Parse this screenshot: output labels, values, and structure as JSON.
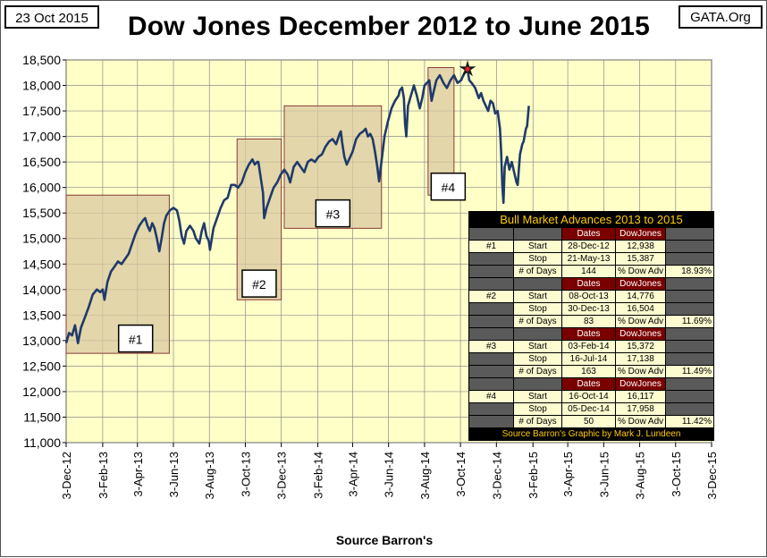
{
  "header": {
    "date": "23 Oct 2015",
    "site": "GATA.Org",
    "title": "Dow Jones December 2012 to June 2015"
  },
  "footer": {
    "source": "Source Barron's"
  },
  "colors": {
    "plot_bg": "#ffffc8",
    "line": "#1f3a6b",
    "box_fill": "#d9c8a0",
    "box_border": "#8b3a3a",
    "peak_marker": "#e0202a"
  },
  "chart_data": {
    "type": "line",
    "title": "Dow Jones December 2012 to June 2015",
    "xlabel": "Source Barron's",
    "ylabel": "",
    "ylim": [
      11000,
      18500
    ],
    "yticks": [
      11000,
      11500,
      12000,
      12500,
      13000,
      13500,
      14000,
      14500,
      15000,
      15500,
      16000,
      16500,
      17000,
      17500,
      18000,
      18500
    ],
    "ytick_labels": [
      "11,000",
      "11,500",
      "12,000",
      "12,500",
      "13,000",
      "13,500",
      "14,000",
      "14,500",
      "15,000",
      "15,500",
      "16,000",
      "16,500",
      "17,000",
      "17,500",
      "18,000",
      "18,500"
    ],
    "xlim_days": [
      0,
      1095
    ],
    "xticks_days": [
      0,
      62,
      121,
      182,
      243,
      304,
      365,
      427,
      486,
      547,
      608,
      669,
      730,
      792,
      851,
      912,
      973,
      1034,
      1095
    ],
    "xtick_labels": [
      "3-Dec-12",
      "3-Feb-13",
      "3-Apr-13",
      "3-Jun-13",
      "3-Aug-13",
      "3-Oct-13",
      "3-Dec-13",
      "3-Feb-14",
      "3-Apr-14",
      "3-Jun-14",
      "3-Aug-14",
      "3-Oct-14",
      "3-Dec-14",
      "3-Feb-15",
      "3-Apr-15",
      "3-Jun-15",
      "3-Aug-15",
      "3-Oct-15",
      "3-Dec-15"
    ],
    "series": [
      {
        "name": "Dow Jones",
        "points": [
          [
            0,
            12950
          ],
          [
            5,
            13150
          ],
          [
            10,
            13100
          ],
          [
            15,
            13300
          ],
          [
            20,
            12950
          ],
          [
            25,
            13250
          ],
          [
            30,
            13400
          ],
          [
            38,
            13650
          ],
          [
            45,
            13900
          ],
          [
            52,
            14000
          ],
          [
            58,
            13950
          ],
          [
            62,
            14000
          ],
          [
            65,
            13800
          ],
          [
            70,
            14150
          ],
          [
            76,
            14350
          ],
          [
            82,
            14450
          ],
          [
            88,
            14550
          ],
          [
            94,
            14500
          ],
          [
            100,
            14600
          ],
          [
            106,
            14700
          ],
          [
            112,
            14900
          ],
          [
            118,
            15100
          ],
          [
            124,
            15250
          ],
          [
            130,
            15350
          ],
          [
            134,
            15400
          ],
          [
            138,
            15250
          ],
          [
            142,
            15150
          ],
          [
            146,
            15300
          ],
          [
            150,
            15200
          ],
          [
            154,
            15000
          ],
          [
            158,
            14750
          ],
          [
            162,
            15000
          ],
          [
            166,
            15300
          ],
          [
            170,
            15450
          ],
          [
            176,
            15550
          ],
          [
            182,
            15600
          ],
          [
            188,
            15550
          ],
          [
            192,
            15350
          ],
          [
            196,
            15050
          ],
          [
            200,
            14900
          ],
          [
            204,
            15150
          ],
          [
            210,
            15250
          ],
          [
            216,
            15150
          ],
          [
            220,
            15000
          ],
          [
            226,
            14900
          ],
          [
            230,
            15150
          ],
          [
            234,
            15300
          ],
          [
            238,
            15050
          ],
          [
            242,
            14950
          ],
          [
            244,
            14780
          ],
          [
            250,
            15200
          ],
          [
            256,
            15400
          ],
          [
            262,
            15600
          ],
          [
            268,
            15750
          ],
          [
            274,
            15800
          ],
          [
            280,
            16050
          ],
          [
            286,
            16050
          ],
          [
            292,
            16000
          ],
          [
            298,
            16100
          ],
          [
            304,
            16300
          ],
          [
            310,
            16450
          ],
          [
            316,
            16550
          ],
          [
            320,
            16450
          ],
          [
            324,
            16500
          ],
          [
            326,
            16500
          ],
          [
            330,
            16200
          ],
          [
            334,
            15900
          ],
          [
            336,
            15400
          ],
          [
            340,
            15600
          ],
          [
            346,
            15800
          ],
          [
            352,
            16000
          ],
          [
            358,
            16100
          ],
          [
            364,
            16250
          ],
          [
            370,
            16350
          ],
          [
            376,
            16250
          ],
          [
            380,
            16100
          ],
          [
            386,
            16400
          ],
          [
            392,
            16500
          ],
          [
            398,
            16400
          ],
          [
            404,
            16300
          ],
          [
            410,
            16500
          ],
          [
            416,
            16550
          ],
          [
            422,
            16500
          ],
          [
            428,
            16600
          ],
          [
            434,
            16650
          ],
          [
            440,
            16800
          ],
          [
            446,
            16900
          ],
          [
            452,
            16950
          ],
          [
            458,
            16850
          ],
          [
            464,
            17050
          ],
          [
            466,
            17100
          ],
          [
            468,
            16900
          ],
          [
            472,
            16600
          ],
          [
            476,
            16450
          ],
          [
            480,
            16550
          ],
          [
            486,
            16700
          ],
          [
            492,
            16950
          ],
          [
            498,
            17050
          ],
          [
            504,
            17100
          ],
          [
            508,
            17150
          ],
          [
            512,
            17000
          ],
          [
            516,
            17050
          ],
          [
            520,
            16950
          ],
          [
            524,
            16700
          ],
          [
            528,
            16400
          ],
          [
            531,
            16120
          ],
          [
            536,
            16600
          ],
          [
            540,
            17000
          ],
          [
            546,
            17300
          ],
          [
            552,
            17550
          ],
          [
            558,
            17700
          ],
          [
            564,
            17800
          ],
          [
            566,
            17900
          ],
          [
            570,
            17958
          ],
          [
            573,
            17750
          ],
          [
            575,
            17250
          ],
          [
            577,
            17000
          ],
          [
            580,
            17600
          ],
          [
            585,
            17800
          ],
          [
            590,
            18000
          ],
          [
            595,
            17800
          ],
          [
            600,
            17550
          ],
          [
            604,
            17750
          ],
          [
            608,
            18000
          ],
          [
            612,
            18050
          ],
          [
            616,
            18100
          ],
          [
            620,
            17700
          ],
          [
            624,
            17900
          ],
          [
            628,
            18100
          ],
          [
            634,
            18200
          ],
          [
            640,
            18050
          ],
          [
            646,
            17950
          ],
          [
            652,
            18100
          ],
          [
            658,
            18200
          ],
          [
            664,
            18050
          ],
          [
            670,
            18100
          ],
          [
            676,
            18250
          ],
          [
            681,
            18300
          ],
          [
            684,
            18100
          ],
          [
            688,
            18050
          ],
          [
            694,
            17950
          ],
          [
            700,
            17750
          ],
          [
            704,
            17850
          ],
          [
            708,
            17700
          ],
          [
            712,
            17600
          ],
          [
            716,
            17500
          ],
          [
            720,
            17700
          ],
          [
            724,
            17650
          ],
          [
            728,
            17450
          ],
          [
            732,
            17500
          ],
          [
            736,
            17150
          ],
          [
            738,
            16700
          ],
          [
            740,
            16050
          ],
          [
            742,
            15700
          ],
          [
            744,
            16400
          ],
          [
            748,
            16600
          ],
          [
            752,
            16350
          ],
          [
            756,
            16500
          ],
          [
            760,
            16300
          ],
          [
            764,
            16100
          ],
          [
            766,
            16050
          ],
          [
            770,
            16650
          ],
          [
            774,
            16850
          ],
          [
            776,
            16900
          ],
          [
            780,
            17150
          ],
          [
            782,
            17200
          ],
          [
            785,
            17600
          ]
        ]
      }
    ],
    "annotations": [
      {
        "label": "#1",
        "x_days": [
          0,
          175
        ],
        "y_range": [
          12750,
          15850
        ]
      },
      {
        "label": "#2",
        "x_days": [
          290,
          365
        ],
        "y_range": [
          13800,
          16950
        ]
      },
      {
        "label": "#3",
        "x_days": [
          370,
          535
        ],
        "y_range": [
          15200,
          17600
        ]
      },
      {
        "label": "#4",
        "x_days": [
          614,
          658
        ],
        "y_range": [
          15850,
          18350
        ]
      }
    ],
    "peak_marker": {
      "x_days": 681,
      "y": 18320
    }
  },
  "table": {
    "title": "Bull Market Advances 2013 to 2015",
    "col_dates": "Dates",
    "col_dow": "DowJones",
    "label_start": "Start",
    "label_stop": "Stop",
    "label_days": "# of Days",
    "label_adv": "% Dow Adv",
    "advances": [
      {
        "id": "#1",
        "start": "28-Dec-12",
        "start_val": "12,938",
        "stop": "21-May-13",
        "stop_val": "15,387",
        "days": "144",
        "adv": "18.93%"
      },
      {
        "id": "#2",
        "start": "08-Oct-13",
        "start_val": "14,776",
        "stop": "30-Dec-13",
        "stop_val": "16,504",
        "days": "83",
        "adv": "11.69%"
      },
      {
        "id": "#3",
        "start": "03-Feb-14",
        "start_val": "15,372",
        "stop": "16-Jul-14",
        "stop_val": "17,138",
        "days": "163",
        "adv": "11.49%"
      },
      {
        "id": "#4",
        "start": "16-Oct-14",
        "start_val": "16,117",
        "stop": "05-Dec-14",
        "stop_val": "17,958",
        "days": "50",
        "adv": "11.42%"
      }
    ],
    "footer": "Source Barron's  Graphic by Mark J. Lundeen"
  }
}
